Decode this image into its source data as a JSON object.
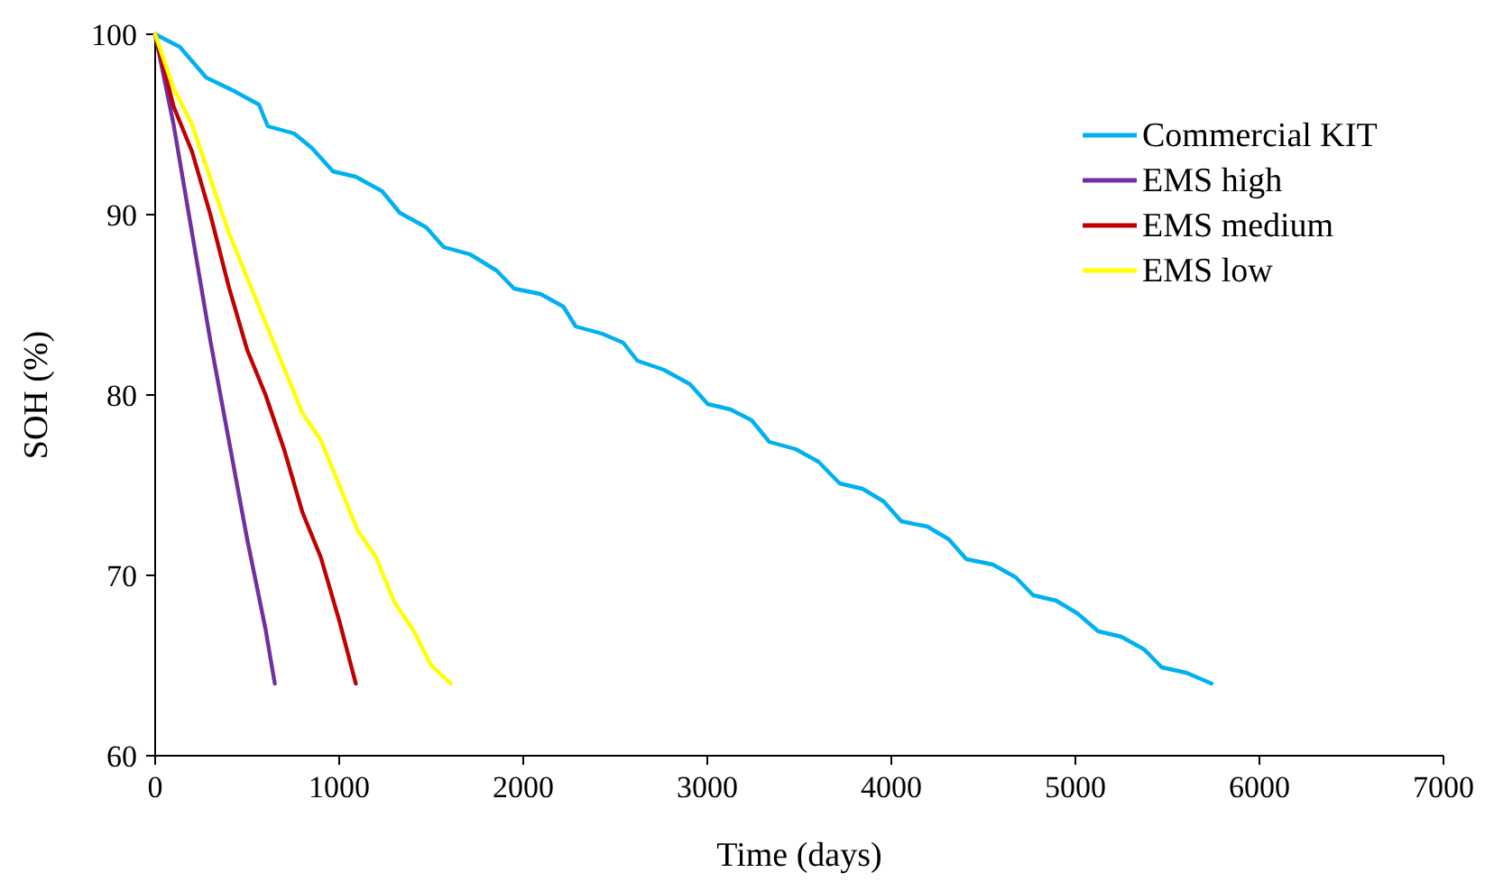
{
  "chart_data": {
    "type": "line",
    "xlabel": "Time (days)",
    "ylabel": "SOH (%)",
    "xlim": [
      0,
      7000
    ],
    "xticks": [
      0,
      1000,
      2000,
      3000,
      4000,
      5000,
      6000,
      7000
    ],
    "ylim": [
      60,
      100
    ],
    "yticks": [
      60,
      70,
      80,
      90,
      100
    ],
    "grid": false,
    "legend": "top right",
    "marker": "none",
    "line_style": "solid",
    "series": [
      {
        "name": "Commercial KIT",
        "color": "#00b0f0",
        "x": [
          0,
          134,
          277,
          420,
          564,
          612,
          755,
          851,
          966,
          1090,
          1233,
          1329,
          1472,
          1568,
          1711,
          1855,
          1950,
          2094,
          2218,
          2285,
          2428,
          2543,
          2620,
          2763,
          2906,
          3002,
          3126,
          3241,
          3337,
          3480,
          3604,
          3719,
          3843,
          3958,
          4054,
          4197,
          4312,
          4407,
          4551,
          4675,
          4770,
          4895,
          5010,
          5124,
          5249,
          5373,
          5469,
          5603,
          5740
        ],
        "values": [
          100,
          99.3,
          97.6,
          96.9,
          96.1,
          94.9,
          94.5,
          93.7,
          92.4,
          92.1,
          91.3,
          90.1,
          89.3,
          88.2,
          87.8,
          86.9,
          85.9,
          85.6,
          84.9,
          83.8,
          83.4,
          82.9,
          81.9,
          81.4,
          80.6,
          79.5,
          79.2,
          78.6,
          77.4,
          77.0,
          76.3,
          75.1,
          74.8,
          74.1,
          73.0,
          72.7,
          72.0,
          70.9,
          70.6,
          69.9,
          68.9,
          68.6,
          67.9,
          66.9,
          66.6,
          65.9,
          64.9,
          64.6,
          64
        ]
      },
      {
        "name": "EMS high",
        "color": "#7030a0",
        "x": [
          0,
          100,
          200,
          300,
          400,
          500,
          600,
          650
        ],
        "values": [
          100,
          95,
          89,
          83,
          77.5,
          72,
          67,
          64
        ]
      },
      {
        "name": "EMS medium",
        "color": "#c00000",
        "x": [
          0,
          100,
          200,
          300,
          400,
          500,
          600,
          700,
          800,
          900,
          1000,
          1090
        ],
        "values": [
          100,
          96,
          93.5,
          90,
          86,
          82.5,
          80,
          77,
          73.5,
          71,
          67.5,
          64
        ]
      },
      {
        "name": "EMS low",
        "color": "#ffff00",
        "x": [
          0,
          100,
          200,
          300,
          400,
          500,
          600,
          700,
          800,
          900,
          1000,
          1100,
          1200,
          1300,
          1400,
          1500,
          1606
        ],
        "values": [
          100,
          97,
          95,
          92,
          89,
          86.5,
          84,
          81.5,
          79,
          77.5,
          75,
          72.5,
          71,
          68.5,
          67,
          65,
          64
        ]
      }
    ]
  }
}
